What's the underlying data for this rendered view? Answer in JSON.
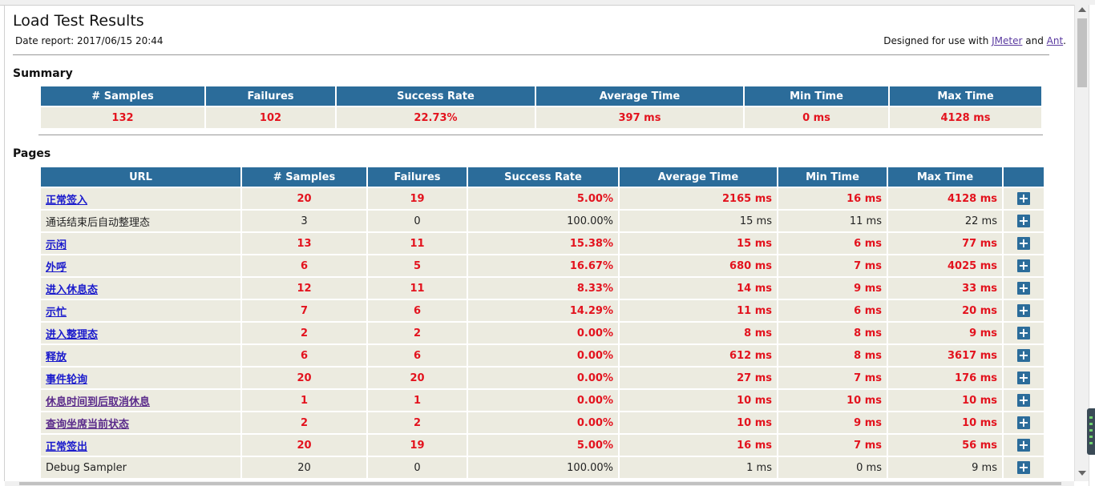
{
  "page": {
    "title": "Load Test Results",
    "date_report": "Date report: 2017/06/15 20:44",
    "designed_prefix": "Designed for use with ",
    "link_jmeter": "JMeter",
    "designed_and": " and ",
    "link_ant": "Ant",
    "designed_suffix": "."
  },
  "summary": {
    "heading": "Summary",
    "headers": [
      "# Samples",
      "Failures",
      "Success Rate",
      "Average Time",
      "Min Time",
      "Max Time"
    ],
    "values": [
      "132",
      "102",
      "22.73%",
      "397 ms",
      "0 ms",
      "4128 ms"
    ]
  },
  "pages": {
    "heading": "Pages",
    "headers": [
      "URL",
      "# Samples",
      "Failures",
      "Success Rate",
      "Average Time",
      "Min Time",
      "Max Time",
      ""
    ],
    "rows": [
      {
        "url": "正常签入",
        "samples": "20",
        "failures": "19",
        "rate": "5.00%",
        "avg": "2165 ms",
        "min": "16 ms",
        "max": "4128 ms"
      },
      {
        "url": "通话结束后自动整理态",
        "samples": "3",
        "failures": "0",
        "rate": "100.00%",
        "avg": "15 ms",
        "min": "11 ms",
        "max": "22 ms"
      },
      {
        "url": "示闲",
        "samples": "13",
        "failures": "11",
        "rate": "15.38%",
        "avg": "15 ms",
        "min": "6 ms",
        "max": "77 ms"
      },
      {
        "url": "外呼",
        "samples": "6",
        "failures": "5",
        "rate": "16.67%",
        "avg": "680 ms",
        "min": "7 ms",
        "max": "4025 ms"
      },
      {
        "url": "进入休息态",
        "samples": "12",
        "failures": "11",
        "rate": "8.33%",
        "avg": "14 ms",
        "min": "9 ms",
        "max": "33 ms"
      },
      {
        "url": "示忙",
        "samples": "7",
        "failures": "6",
        "rate": "14.29%",
        "avg": "11 ms",
        "min": "6 ms",
        "max": "20 ms"
      },
      {
        "url": "进入整理态",
        "samples": "2",
        "failures": "2",
        "rate": "0.00%",
        "avg": "8 ms",
        "min": "8 ms",
        "max": "9 ms"
      },
      {
        "url": "释放",
        "samples": "6",
        "failures": "6",
        "rate": "0.00%",
        "avg": "612 ms",
        "min": "8 ms",
        "max": "3617 ms"
      },
      {
        "url": "事件轮询",
        "samples": "20",
        "failures": "20",
        "rate": "0.00%",
        "avg": "27 ms",
        "min": "7 ms",
        "max": "176 ms"
      },
      {
        "url": "休息时间到后取消休息",
        "samples": "1",
        "failures": "1",
        "rate": "0.00%",
        "avg": "10 ms",
        "min": "10 ms",
        "max": "10 ms"
      },
      {
        "url": "查询坐席当前状态",
        "samples": "2",
        "failures": "2",
        "rate": "0.00%",
        "avg": "10 ms",
        "min": "9 ms",
        "max": "10 ms"
      },
      {
        "url": "正常签出",
        "samples": "20",
        "failures": "19",
        "rate": "5.00%",
        "avg": "16 ms",
        "min": "7 ms",
        "max": "56 ms"
      },
      {
        "url": "Debug Sampler",
        "samples": "20",
        "failures": "0",
        "rate": "100.00%",
        "avg": "1 ms",
        "min": "0 ms",
        "max": "9 ms"
      }
    ],
    "expand_symbol": "+"
  },
  "colors": {
    "header_bg": "#2b6c9a",
    "cell_bg": "#ecebe0",
    "failure_text": "#e3131e",
    "link": "#1a1acc"
  },
  "icons": {
    "expand": "plus-icon"
  }
}
